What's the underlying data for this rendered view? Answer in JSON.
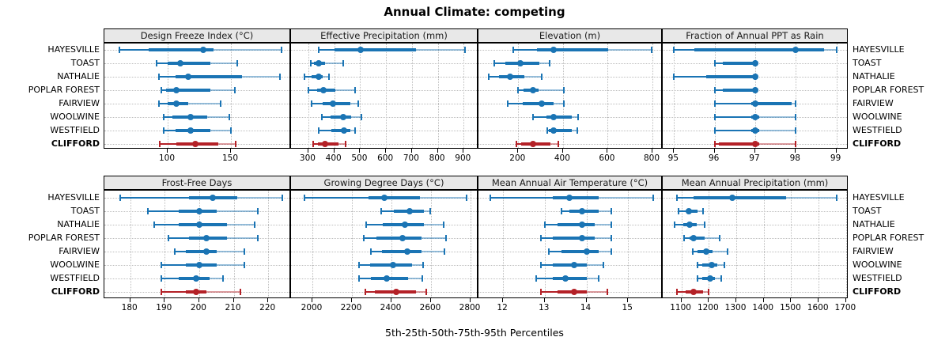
{
  "title": "Annual Climate: competing",
  "xlabel": "5th-25th-50th-75th-95th Percentiles",
  "sites": [
    "HAYESVILLE",
    "TOAST",
    "NATHALIE",
    "POPLAR FOREST",
    "FAIRVIEW",
    "WOOLWINE",
    "WESTFIELD",
    "CLIFFORD"
  ],
  "highlight_site": "CLIFFORD",
  "colors": {
    "series": "#1a74b4",
    "highlight": "#b42127",
    "strip_bg": "#e8e8e8",
    "grid": "#bdbdbd",
    "panel_border": "#000000"
  },
  "chart_data": {
    "type": "dot-whisker",
    "percentiles": [
      5,
      25,
      50,
      75,
      95
    ],
    "legend": "none",
    "grid": "dotted",
    "panels": [
      {
        "id": "design-freeze-index",
        "title": "Design Freeze Index (°C)",
        "ticks": [
          100,
          150
        ],
        "domain": [
          50,
          197.5
        ],
        "values": {
          "HAYESVILLE": [
            62,
            85,
            128,
            136,
            190
          ],
          "TOAST": [
            91,
            100,
            110,
            134,
            155
          ],
          "NATHALIE": [
            93,
            106,
            116,
            159,
            189
          ],
          "POPLAR FOREST": [
            95,
            99,
            107,
            134,
            153
          ],
          "FAIRVIEW": [
            93,
            100,
            107,
            116,
            142
          ],
          "WOOLWINE": [
            97,
            104,
            118,
            131,
            149
          ],
          "WESTFIELD": [
            97,
            106,
            118,
            134,
            150
          ],
          "CLIFFORD": [
            94,
            107,
            122,
            140,
            154
          ]
        }
      },
      {
        "id": "effective-precipitation",
        "title": "Effective Precipitation (mm)",
        "ticks": [
          300,
          400,
          500,
          600,
          700,
          800,
          900
        ],
        "domain": [
          233,
          957
        ],
        "values": {
          "HAYESVILLE": [
            339,
            400,
            502,
            716,
            905
          ],
          "TOAST": [
            308,
            323,
            341,
            364,
            436
          ],
          "NATHALIE": [
            285,
            313,
            339,
            354,
            380
          ],
          "POPLAR FOREST": [
            300,
            334,
            357,
            405,
            481
          ],
          "FAIRVIEW": [
            313,
            354,
            395,
            461,
            494
          ],
          "WOOLWINE": [
            351,
            385,
            434,
            466,
            504
          ],
          "WESTFIELD": [
            341,
            390,
            439,
            461,
            481
          ],
          "CLIFFORD": [
            318,
            337,
            364,
            415,
            444
          ]
        }
      },
      {
        "id": "elevation",
        "title": "Elevation (m)",
        "ticks": [
          200,
          400,
          600,
          800
        ],
        "domain": [
          22,
          846
        ],
        "values": {
          "HAYESVILLE": [
            179,
            283,
            359,
            603,
            795
          ],
          "TOAST": [
            93,
            143,
            208,
            294,
            340
          ],
          "NATHALIE": [
            69,
            113,
            165,
            228,
            305
          ],
          "POPLAR FOREST": [
            200,
            224,
            265,
            291,
            403
          ],
          "FAIRVIEW": [
            153,
            220,
            305,
            359,
            405
          ],
          "WOOLWINE": [
            267,
            326,
            359,
            438,
            467
          ],
          "WESTFIELD": [
            330,
            336,
            359,
            438,
            464
          ],
          "CLIFFORD": [
            191,
            214,
            267,
            344,
            379
          ]
        }
      },
      {
        "id": "fraction-annual-ppt-rain",
        "title": "Fraction of Annual PPT as Rain",
        "ticks": [
          95,
          96,
          97,
          98,
          99
        ],
        "domain": [
          94.72,
          99.3
        ],
        "values": {
          "HAYESVILLE": [
            95,
            95.5,
            98,
            98.7,
            99
          ],
          "TOAST": [
            96,
            96.2,
            97,
            97,
            97
          ],
          "NATHALIE": [
            95,
            95.8,
            97,
            97,
            97
          ],
          "POPLAR FOREST": [
            96,
            96.2,
            97,
            97,
            97
          ],
          "FAIRVIEW": [
            96,
            96.9,
            97,
            97.9,
            98
          ],
          "WOOLWINE": [
            96,
            96.9,
            97,
            97.1,
            98
          ],
          "WESTFIELD": [
            96,
            96.9,
            97,
            97.1,
            98
          ],
          "CLIFFORD": [
            96,
            96.1,
            97,
            97.1,
            98
          ]
        }
      },
      {
        "id": "frost-free-days",
        "title": "Frost-Free Days",
        "ticks": [
          180,
          190,
          200,
          210,
          220
        ],
        "domain": [
          172.5,
          226.6
        ],
        "values": {
          "HAYESVILLE": [
            177,
            197,
            204,
            211,
            224
          ],
          "TOAST": [
            185,
            194,
            200,
            205,
            217
          ],
          "NATHALIE": [
            187,
            194,
            200,
            208,
            216
          ],
          "POPLAR FOREST": [
            191,
            197,
            202,
            208,
            217
          ],
          "FAIRVIEW": [
            193,
            196,
            202,
            205,
            213
          ],
          "WOOLWINE": [
            189,
            196,
            200,
            205,
            213
          ],
          "WESTFIELD": [
            189,
            194,
            199,
            203,
            207
          ],
          "CLIFFORD": [
            189,
            196,
            199,
            202,
            212
          ]
        }
      },
      {
        "id": "growing-degree-days",
        "title": "Growing Degree Days (°C)",
        "ticks": [
          2000,
          2200,
          2400,
          2600,
          2800
        ],
        "domain": [
          1892,
          2840
        ],
        "values": {
          "HAYESVILLE": [
            1960,
            2285,
            2365,
            2545,
            2780
          ],
          "TOAST": [
            2347,
            2411,
            2493,
            2564,
            2595
          ],
          "NATHALIE": [
            2271,
            2357,
            2467,
            2564,
            2664
          ],
          "POPLAR FOREST": [
            2260,
            2324,
            2457,
            2551,
            2674
          ],
          "FAIRVIEW": [
            2297,
            2351,
            2480,
            2551,
            2668
          ],
          "WOOLWINE": [
            2237,
            2291,
            2408,
            2504,
            2561
          ],
          "WESTFIELD": [
            2237,
            2297,
            2377,
            2484,
            2557
          ],
          "CLIFFORD": [
            2268,
            2317,
            2424,
            2524,
            2577
          ]
        }
      },
      {
        "id": "mean-annual-air-temperature",
        "title": "Mean Annual Air Temperature (°C)",
        "ticks": [
          12,
          13,
          14,
          15
        ],
        "domain": [
          11.41,
          15.83
        ],
        "values": {
          "HAYESVILLE": [
            11.7,
            13.2,
            13.6,
            14.3,
            15.6
          ],
          "TOAST": [
            13.4,
            13.6,
            13.9,
            14.3,
            14.6
          ],
          "NATHALIE": [
            13.0,
            13.3,
            13.9,
            14.2,
            14.6
          ],
          "POPLAR FOREST": [
            12.9,
            13.2,
            13.9,
            14.2,
            14.6
          ],
          "FAIRVIEW": [
            13.1,
            13.4,
            14.0,
            14.3,
            14.6
          ],
          "WOOLWINE": [
            12.9,
            13.2,
            13.7,
            14.0,
            14.4
          ],
          "WESTFIELD": [
            12.8,
            13.2,
            13.5,
            14.0,
            14.3
          ],
          "CLIFFORD": [
            12.9,
            13.3,
            13.7,
            14.0,
            14.5
          ]
        }
      },
      {
        "id": "mean-annual-precipitation",
        "title": "Mean Annual Precipitation (mm)",
        "ticks": [
          1100,
          1200,
          1300,
          1400,
          1500,
          1600,
          1700
        ],
        "domain": [
          1032,
          1709
        ],
        "values": {
          "HAYESVILLE": [
            1085,
            1145,
            1285,
            1480,
            1665
          ],
          "TOAST": [
            1090,
            1120,
            1128,
            1160,
            1180
          ],
          "NATHALIE": [
            1075,
            1107,
            1130,
            1155,
            1185
          ],
          "POPLAR FOREST": [
            1110,
            1130,
            1145,
            1185,
            1238
          ],
          "FAIRVIEW": [
            1142,
            1158,
            1190,
            1213,
            1268
          ],
          "WOOLWINE": [
            1160,
            1177,
            1212,
            1232,
            1258
          ],
          "WESTFIELD": [
            1160,
            1177,
            1205,
            1222,
            1244
          ],
          "CLIFFORD": [
            1085,
            1116,
            1145,
            1180,
            1198
          ]
        }
      }
    ]
  }
}
